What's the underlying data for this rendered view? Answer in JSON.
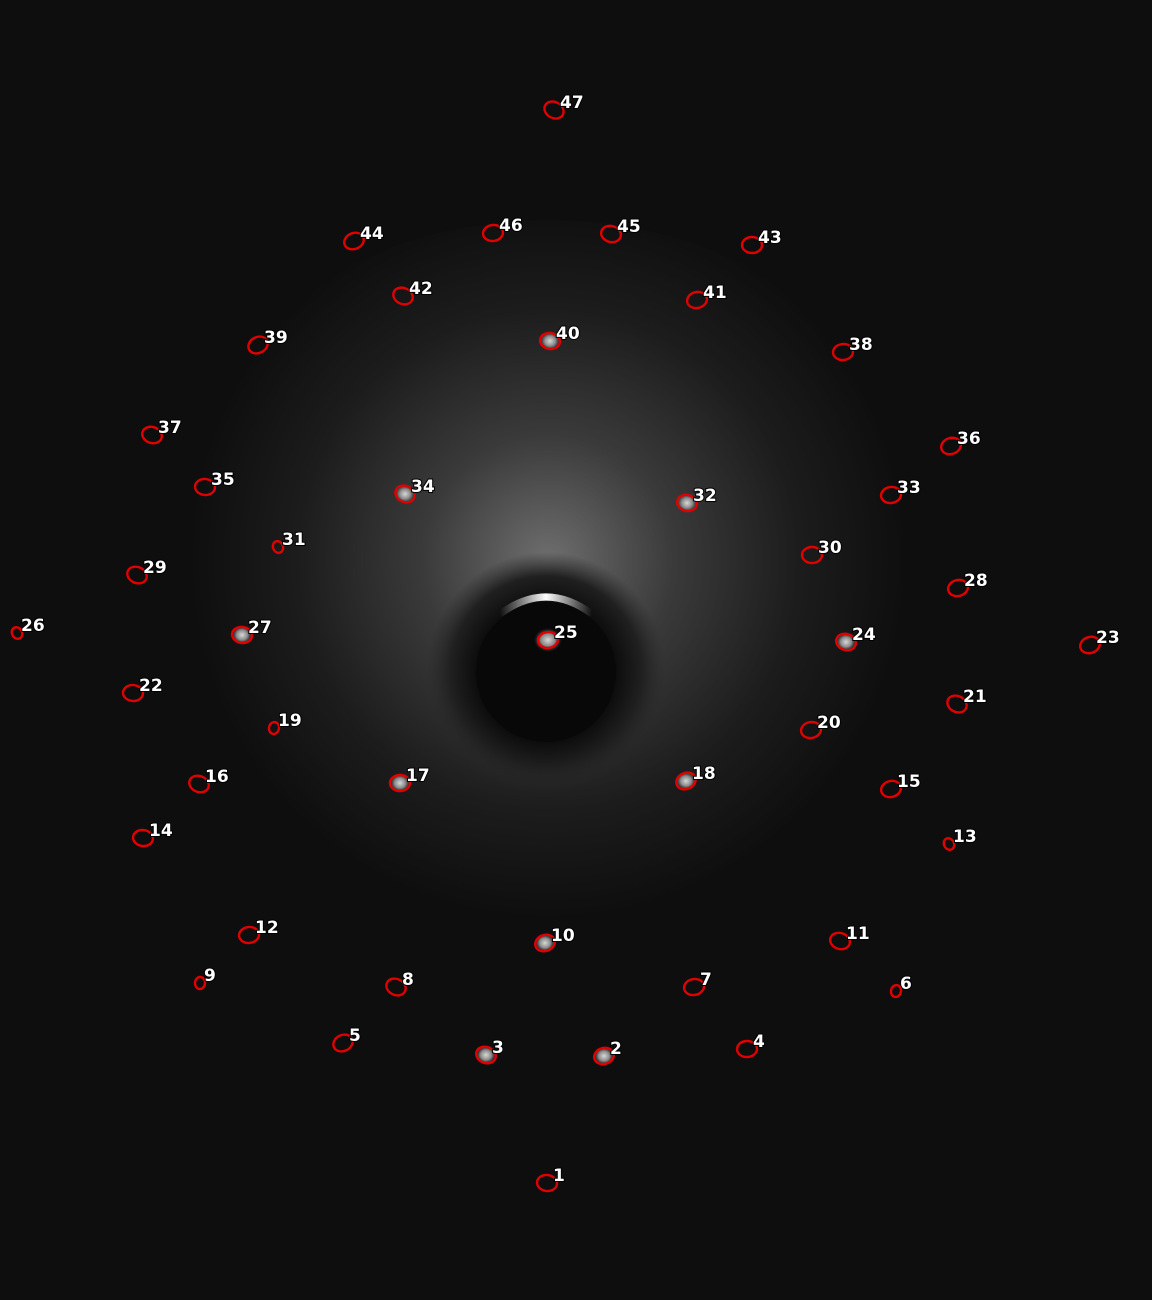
{
  "image": {
    "background_color": "#0e0e0e",
    "outline_color": "#e00000",
    "label_color": "#ffffff"
  },
  "spots": [
    {
      "label": "1"
    },
    {
      "label": "2"
    },
    {
      "label": "3"
    },
    {
      "label": "4"
    },
    {
      "label": "5"
    },
    {
      "label": "6"
    },
    {
      "label": "7"
    },
    {
      "label": "8"
    },
    {
      "label": "9"
    },
    {
      "label": "10"
    },
    {
      "label": "11"
    },
    {
      "label": "12"
    },
    {
      "label": "13"
    },
    {
      "label": "14"
    },
    {
      "label": "15"
    },
    {
      "label": "16"
    },
    {
      "label": "17"
    },
    {
      "label": "18"
    },
    {
      "label": "19"
    },
    {
      "label": "20"
    },
    {
      "label": "21"
    },
    {
      "label": "22"
    },
    {
      "label": "23"
    },
    {
      "label": "24"
    },
    {
      "label": "25"
    },
    {
      "label": "26"
    },
    {
      "label": "27"
    },
    {
      "label": "28"
    },
    {
      "label": "29"
    },
    {
      "label": "30"
    },
    {
      "label": "31"
    },
    {
      "label": "32"
    },
    {
      "label": "33"
    },
    {
      "label": "34"
    },
    {
      "label": "35"
    },
    {
      "label": "36"
    },
    {
      "label": "37"
    },
    {
      "label": "38"
    },
    {
      "label": "39"
    },
    {
      "label": "40"
    },
    {
      "label": "41"
    },
    {
      "label": "42"
    },
    {
      "label": "43"
    },
    {
      "label": "44"
    },
    {
      "label": "45"
    },
    {
      "label": "46"
    },
    {
      "label": "47"
    }
  ]
}
